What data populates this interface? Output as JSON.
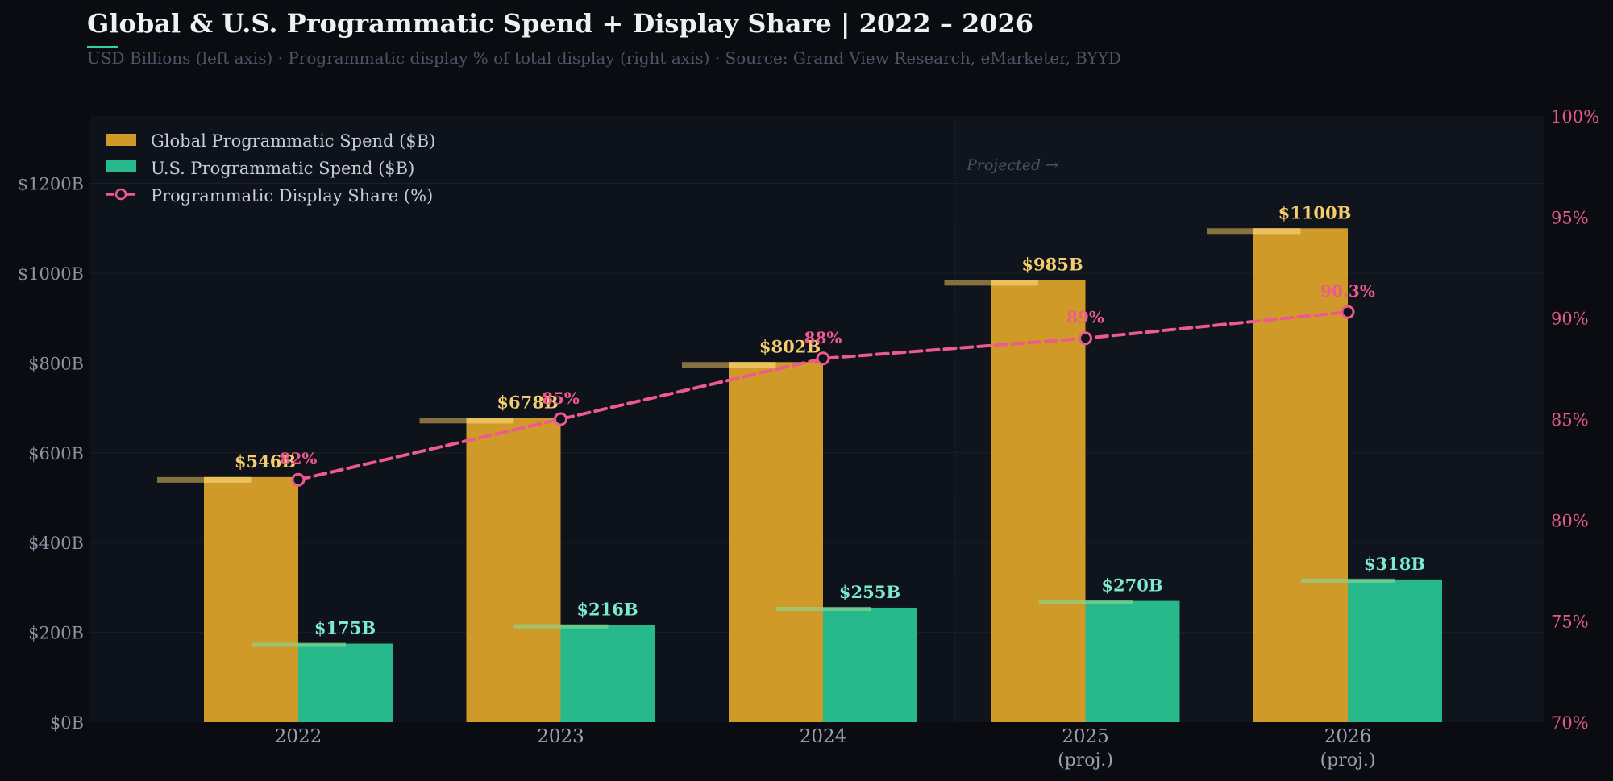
{
  "header": {
    "title": "Global & U.S. Programmatic Spend + Display Share  |  2022 – 2026",
    "subtitle": "USD Billions (left axis)  ·  Programmatic display % of total display (right axis)  ·  Source: Grand View Research, eMarketer, BYYD"
  },
  "colors": {
    "background": "#0a0c11",
    "plot_background": "#0e121a",
    "global": "#cf9a27",
    "us": "#27b88b",
    "share": "#ee5a90",
    "global_label": "#f4cd6e",
    "us_label": "#7ee9cf",
    "accent_underline": "#2dd4a0"
  },
  "projected_note": "Projected →",
  "chart_data": {
    "type": "bar",
    "title": "Global & U.S. Programmatic Spend + Display Share  |  2022 – 2026",
    "categories": [
      "2022",
      "2023",
      "2024",
      "2025",
      "2026"
    ],
    "category_sublabels": [
      "",
      "",
      "",
      "(proj.)",
      "(proj.)"
    ],
    "series": [
      {
        "name": "Global Programmatic Spend ($B)",
        "type": "bar",
        "axis": "left",
        "values": [
          546,
          678,
          802,
          985,
          1100
        ],
        "labels": [
          "$546B",
          "$678B",
          "$802B",
          "$985B",
          "$1100B"
        ]
      },
      {
        "name": "U.S. Programmatic Spend ($B)",
        "type": "bar",
        "axis": "left",
        "values": [
          175,
          216,
          255,
          270,
          318
        ],
        "labels": [
          "$175B",
          "$216B",
          "$255B",
          "$270B",
          "$318B"
        ]
      },
      {
        "name": "Programmatic Display Share (%)",
        "type": "line",
        "axis": "right",
        "values": [
          82,
          85,
          88,
          89,
          90.3
        ],
        "labels": [
          "82%",
          "85%",
          "88%",
          "89%",
          "90.3%"
        ]
      }
    ],
    "y_left": {
      "label": "USD Billions",
      "range": [
        0,
        1350
      ],
      "ticks": [
        0,
        200,
        400,
        600,
        800,
        1000,
        1200
      ],
      "tick_labels": [
        "$0B",
        "$200B",
        "$400B",
        "$600B",
        "$800B",
        "$1000B",
        "$1200B"
      ]
    },
    "y_right": {
      "label": "Programmatic display % of total display",
      "range": [
        70,
        100
      ],
      "ticks": [
        70,
        75,
        80,
        85,
        90,
        95,
        100
      ],
      "tick_labels": [
        "70%",
        "75%",
        "80%",
        "85%",
        "90%",
        "95%",
        "100%"
      ]
    },
    "projected_from": "2025",
    "grid": true,
    "legend": "top-left"
  }
}
